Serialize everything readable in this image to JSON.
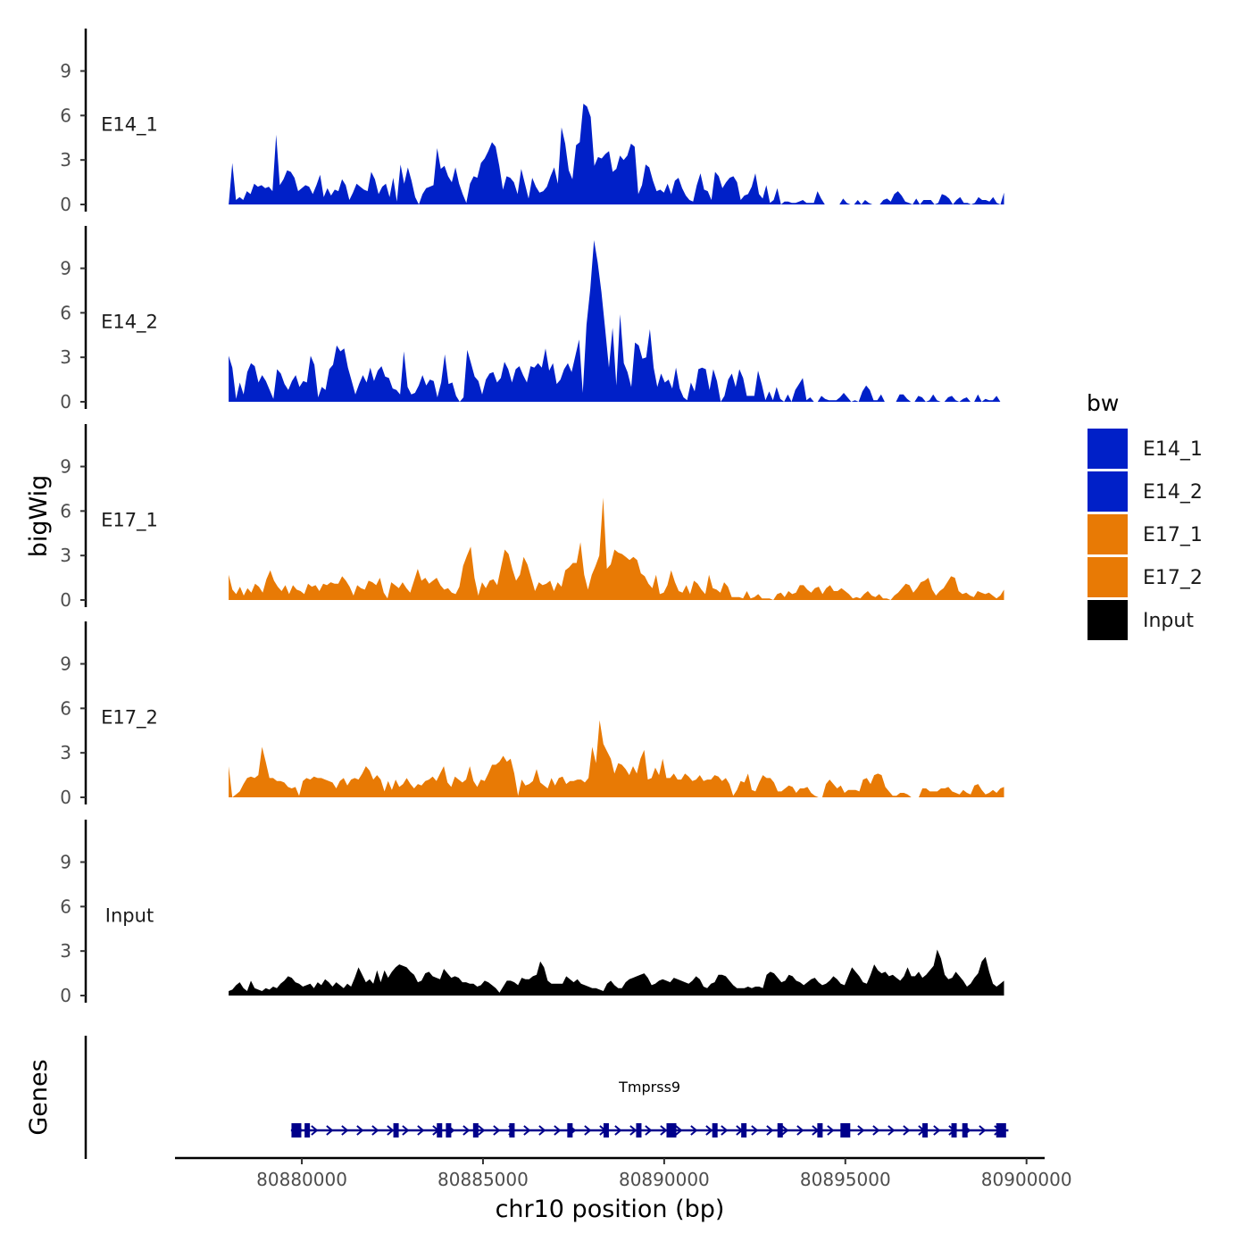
{
  "chart_data": {
    "type": "area",
    "title": "",
    "xlabel": "chr10 position (bp)",
    "ylabel": "bigWig",
    "xlim": [
      80876500,
      80900500
    ],
    "ylim": [
      0,
      11.5
    ],
    "yticks": [
      0,
      3,
      6,
      9
    ],
    "xticks": [
      80880000,
      80885000,
      80890000,
      80895000,
      80900000
    ],
    "data_range": [
      80877980,
      80899380
    ],
    "legend": {
      "title": "bw",
      "position": "right",
      "entries": [
        {
          "label": "E14_1",
          "color": "#0020c8"
        },
        {
          "label": "E14_2",
          "color": "#0020c8"
        },
        {
          "label": "E17_1",
          "color": "#e87a05"
        },
        {
          "label": "E17_2",
          "color": "#e87a05"
        },
        {
          "label": "Input",
          "color": "#000000"
        }
      ]
    },
    "series": [
      {
        "name": "E14_1",
        "color": "#0020c8",
        "values": [
          0,
          2.8,
          0.3,
          0.5,
          0.3,
          0.9,
          0.7,
          1.4,
          1.2,
          1.3,
          1.1,
          1.2,
          0.9,
          4.7,
          1.3,
          1.7,
          2.3,
          2.2,
          1.8,
          0.9,
          1.1,
          1.3,
          1.2,
          0.7,
          1.3,
          2,
          0.5,
          1.1,
          0.6,
          1,
          0.9,
          1.7,
          1.3,
          0.3,
          0.8,
          1.4,
          1.2,
          1,
          0.9,
          2.2,
          1.7,
          0.7,
          1.2,
          1.4,
          0.5,
          1.8,
          0.2,
          2.7,
          1.4,
          2.5,
          1.6,
          0.5,
          0,
          0.7,
          1.1,
          1.2,
          1.3,
          3.8,
          2.4,
          2.6,
          1.9,
          1.5,
          2.5,
          1.4,
          0.7,
          0.1,
          1.4,
          1.9,
          1.8,
          2.8,
          3.1,
          3.6,
          4.2,
          3.9,
          2.6,
          1,
          1.9,
          1.8,
          1.5,
          0.7,
          2.4,
          1.4,
          0.4,
          1.8,
          1.2,
          0.8,
          0.9,
          1.2,
          1.9,
          2.5,
          1.4,
          5.2,
          4.1,
          2.3,
          1.7,
          4,
          4.2,
          6.8,
          6.6,
          5.9,
          2.6,
          3.2,
          3.1,
          3.4,
          3.6,
          2.2,
          2.4,
          3.3,
          3,
          3.3,
          4.1,
          3.9,
          0.7,
          1.3,
          2.7,
          2.5,
          1.6,
          0.9,
          1,
          0.8,
          1.4,
          0.7,
          1.6,
          1.8,
          1.1,
          0.6,
          0.3,
          0.2,
          1.3,
          2.1,
          1,
          0.9,
          0.3,
          2.2,
          1.9,
          1.1,
          1.5,
          1.8,
          1.9,
          1.5,
          0.3,
          0.6,
          0.7,
          1.2,
          2.1,
          0.7,
          0.4,
          1.3,
          0.1,
          0.3,
          1.1,
          0,
          0.2,
          0.2,
          0.1,
          0.1,
          0.2,
          0.3,
          0.1,
          0.1,
          0.1,
          0.9,
          0.4,
          0,
          0,
          0,
          0,
          0,
          0.4,
          0.1,
          0,
          0,
          0.3,
          0,
          0.3,
          0.1,
          0,
          0,
          0,
          0.3,
          0.4,
          0.2,
          0.7,
          0.9,
          0.6,
          0.2,
          0.1,
          0,
          0.4,
          0,
          0.3,
          0.3,
          0.3,
          0,
          0.1,
          0.7,
          0.6,
          0.4,
          0,
          0.3,
          0.5,
          0.1,
          0.1,
          0,
          0.1,
          0.5,
          0.3,
          0.3,
          0.2,
          0.5,
          0.1,
          0,
          0.8
        ]
      },
      {
        "name": "E14_2",
        "color": "#0020c8",
        "values": [
          3.1,
          2.3,
          0.2,
          1.3,
          0.5,
          2,
          2.6,
          2.4,
          1.3,
          1.8,
          1.4,
          0.8,
          0.2,
          2.2,
          1.9,
          1.2,
          0.8,
          1.4,
          1.8,
          1,
          1.4,
          1.3,
          3.1,
          2.5,
          0.3,
          1,
          0.8,
          2.2,
          2.5,
          3.8,
          3.4,
          3.6,
          2.3,
          1.4,
          0.5,
          1.2,
          1.8,
          1.3,
          2.3,
          1.4,
          2.1,
          2.4,
          1.7,
          1.6,
          0.9,
          0.8,
          0.5,
          3.4,
          1,
          0.5,
          0.6,
          1.1,
          1.8,
          1.1,
          1.5,
          1.4,
          0.3,
          1.3,
          3.2,
          1.2,
          1.3,
          0.4,
          0,
          0.3,
          3.5,
          2.6,
          1.7,
          1.4,
          0.5,
          1.5,
          1.9,
          2,
          1.3,
          1.6,
          2.7,
          2.2,
          1.3,
          2.2,
          2.4,
          1.8,
          1.3,
          2.4,
          2.3,
          2.6,
          2.3,
          3.6,
          2.1,
          2.6,
          1.2,
          1.5,
          2.2,
          2.6,
          2,
          3.1,
          4.2,
          0.6,
          5.2,
          7.6,
          10.9,
          9.4,
          7.4,
          4.9,
          2.3,
          5,
          1.1,
          5.9,
          2.6,
          2,
          1,
          4,
          3.8,
          2.9,
          3,
          4.9,
          2.3,
          1,
          1.9,
          1.3,
          1.5,
          0.9,
          2.3,
          0.9,
          0.3,
          0.1,
          1.3,
          0.7,
          2.2,
          2.3,
          2.2,
          0.8,
          2.2,
          1.4,
          0,
          0.4,
          1.5,
          1.9,
          1,
          2.2,
          1.6,
          0.4,
          0.4,
          0.4,
          2.1,
          1.2,
          0.1,
          0.7,
          0.1,
          1,
          0.2,
          0,
          0.5,
          0,
          0.8,
          1.2,
          1.6,
          0.1,
          0.3,
          0,
          0,
          0.4,
          0.2,
          0.1,
          0.1,
          0.1,
          0.3,
          0.6,
          0.3,
          0,
          0.1,
          0,
          0.7,
          1.1,
          0.8,
          0.1,
          0.1,
          0.5,
          0,
          0,
          0,
          0,
          0.5,
          0.5,
          0.2,
          0,
          0,
          0.4,
          0.3,
          0,
          0.1,
          0.5,
          0.1,
          0,
          0,
          0.3,
          0.4,
          0.1,
          0,
          0.2,
          0.3,
          0,
          0,
          0.5,
          0,
          0.2,
          0.1,
          0.1,
          0.4,
          0,
          0
        ]
      },
      {
        "name": "E17_1",
        "color": "#e87a05",
        "values": [
          1.7,
          0.7,
          0.4,
          0.9,
          0.3,
          0.8,
          0.5,
          1.1,
          0.9,
          0.5,
          1.4,
          2,
          1.3,
          0.9,
          0.6,
          1,
          0.4,
          1,
          0.7,
          0.6,
          0.4,
          1.1,
          0.9,
          1,
          0.6,
          1.1,
          1,
          1.2,
          1.1,
          1.1,
          1.6,
          1.3,
          0.9,
          0.3,
          1,
          0.8,
          0.7,
          1.3,
          1.2,
          1,
          1.5,
          0.5,
          0.1,
          1.2,
          1,
          0.8,
          1.2,
          0.8,
          0.5,
          1.3,
          2.1,
          1.3,
          1.5,
          1.1,
          1.3,
          1.5,
          1,
          0.7,
          0.8,
          0.5,
          0.4,
          0.9,
          2.3,
          3,
          3.6,
          1.5,
          0.3,
          1.2,
          0.8,
          1.3,
          1.4,
          1,
          2.2,
          3.4,
          3.1,
          2.1,
          1.3,
          1.7,
          2.9,
          2.4,
          1.5,
          0.6,
          1.2,
          1,
          1.1,
          1.3,
          0.6,
          1.2,
          0.9,
          2,
          2.2,
          2.5,
          2.5,
          3.9,
          1.7,
          0.7,
          1.7,
          2.3,
          3,
          6.9,
          2.1,
          2.4,
          3.4,
          3.2,
          3.1,
          2.9,
          2.7,
          2.9,
          2.7,
          1.8,
          1.6,
          1.1,
          0.8,
          1.7,
          0.4,
          0.5,
          1,
          2,
          1.2,
          0.6,
          0.5,
          1,
          0.4,
          1.3,
          1.1,
          0.7,
          0.4,
          1.7,
          0.8,
          0.7,
          0.5,
          1.2,
          0.9,
          0.2,
          0.2,
          0.2,
          0.1,
          0.6,
          0.1,
          0.2,
          0.4,
          0.1,
          0.1,
          0.1,
          0,
          0.4,
          0.5,
          0.2,
          0.6,
          0.4,
          0.5,
          1,
          1,
          0.7,
          0.5,
          0.8,
          0.9,
          0.4,
          0.8,
          1,
          0.6,
          0.6,
          0.8,
          0.6,
          0.4,
          0.1,
          0.2,
          0.1,
          0.4,
          0.6,
          0.3,
          0.2,
          0.4,
          0.1,
          0.1,
          0,
          0.3,
          0.5,
          0.8,
          1.1,
          1,
          0.5,
          0.8,
          1.2,
          1.3,
          1.5,
          0.7,
          0.3,
          0.6,
          0.8,
          1.2,
          1.6,
          1.5,
          0.6,
          0.4,
          0.5,
          0.3,
          0.2,
          0.6,
          0.5,
          0.4,
          0.5,
          0.3,
          0.1,
          0.3,
          0.7
        ]
      },
      {
        "name": "E17_2",
        "color": "#e87a05",
        "values": [
          2.1,
          0,
          0.2,
          0.4,
          0.9,
          1.3,
          1.4,
          1.3,
          1.5,
          3.4,
          2.4,
          1.3,
          1.3,
          1.1,
          1.1,
          1,
          0.7,
          0.6,
          0.7,
          0.1,
          1.1,
          1.3,
          1.2,
          1.4,
          1.3,
          1.3,
          1.2,
          1.1,
          1,
          0.6,
          1.1,
          1.3,
          0.8,
          1.2,
          1.3,
          1.2,
          1.6,
          2.1,
          1.8,
          1.2,
          1.5,
          1.2,
          0.4,
          1.1,
          0.5,
          1.2,
          0.7,
          0.9,
          1.3,
          0.9,
          0.6,
          0.9,
          0.8,
          1.1,
          1.2,
          1.4,
          1.1,
          1.6,
          2.1,
          1,
          0.7,
          1.4,
          1.2,
          1,
          1.2,
          2.1,
          1.1,
          0.7,
          1.2,
          1.1,
          1.6,
          2.2,
          2.2,
          2.4,
          2.8,
          2.4,
          2.6,
          1.6,
          0.1,
          1.2,
          0.8,
          0.9,
          1.1,
          1.9,
          1,
          0.8,
          0.6,
          1.3,
          0.8,
          1.3,
          1.4,
          0.9,
          1.1,
          1.1,
          1.2,
          1.2,
          1,
          1.3,
          3.4,
          2.3,
          5.2,
          3.6,
          3.1,
          2.6,
          1.6,
          2.3,
          2.2,
          1.9,
          1.5,
          2.1,
          1.6,
          2.6,
          3.2,
          1.2,
          1.3,
          2,
          1.5,
          2.6,
          1.3,
          1.3,
          1.6,
          1.2,
          1.2,
          1.6,
          1.4,
          1.1,
          1.2,
          1.5,
          1.1,
          1.2,
          1.2,
          1.5,
          1.4,
          1.1,
          1.3,
          0.9,
          0.1,
          0.5,
          1.1,
          1,
          1.6,
          0.5,
          0.4,
          1,
          1.5,
          1.3,
          1.3,
          1,
          0.4,
          0.4,
          0.6,
          0.8,
          0.7,
          0.3,
          0.6,
          0.6,
          0.7,
          0.3,
          0.1,
          0,
          0,
          0.9,
          1.2,
          0.9,
          0.6,
          0.8,
          0.3,
          0.5,
          0.5,
          0.5,
          0.4,
          1.2,
          1.3,
          0.9,
          1.5,
          1.6,
          1.5,
          0.7,
          0.4,
          0.1,
          0.1,
          0.3,
          0.3,
          0.2,
          0,
          0,
          0,
          0.6,
          0.6,
          0.4,
          0.4,
          0.4,
          0.6,
          0.6,
          0.7,
          0.4,
          0.3,
          0.2,
          0.5,
          0.3,
          0.2,
          0.8,
          0.9,
          0.5,
          0.2,
          0.3,
          0.5,
          0.3,
          0.6,
          0.7
        ]
      },
      {
        "name": "Input",
        "color": "#000000",
        "values": [
          0.3,
          0.4,
          0.7,
          0.9,
          0.5,
          0.3,
          1,
          0.5,
          0.4,
          0.3,
          0.5,
          0.4,
          0.6,
          0.5,
          0.8,
          1,
          1.3,
          1.2,
          0.9,
          0.8,
          0.6,
          0.7,
          0.8,
          0.5,
          0.9,
          0.7,
          1.1,
          0.9,
          0.6,
          0.9,
          0.7,
          0.5,
          0.8,
          0.6,
          1.2,
          1.9,
          1.4,
          0.9,
          1.1,
          0.8,
          1.7,
          0.9,
          1.7,
          1.2,
          1.6,
          1.9,
          2.1,
          2,
          1.9,
          1.6,
          1.4,
          0.9,
          1,
          1.5,
          1.6,
          1.3,
          1.2,
          1.1,
          1.8,
          1.5,
          1.2,
          1.3,
          1.2,
          0.9,
          0.9,
          0.8,
          0.8,
          0.6,
          0.7,
          1,
          0.9,
          0.7,
          0.5,
          0.2,
          0.6,
          1,
          1,
          0.9,
          0.7,
          1.2,
          1.1,
          1.1,
          1.3,
          1.4,
          2.3,
          1.9,
          1,
          0.8,
          0.8,
          0.8,
          0.8,
          1.3,
          1.1,
          0.9,
          1.1,
          0.8,
          0.7,
          0.6,
          0.5,
          0.5,
          0.4,
          0.3,
          0.8,
          1,
          0.7,
          0.5,
          0.5,
          0.9,
          1.1,
          1.2,
          1.3,
          1.4,
          1.5,
          1.2,
          0.7,
          0.8,
          1,
          1.1,
          1,
          0.9,
          1.2,
          1.1,
          1,
          0.9,
          0.8,
          1,
          1.3,
          1.1,
          0.6,
          0.5,
          0.8,
          0.9,
          1.4,
          1.4,
          1.3,
          1,
          0.7,
          0.5,
          0.5,
          0.5,
          0.6,
          0.5,
          0.6,
          0.6,
          0.5,
          1.4,
          1.6,
          1.5,
          1.2,
          0.9,
          1,
          1.4,
          1.3,
          1,
          0.9,
          0.7,
          0.9,
          1.1,
          1.2,
          0.9,
          0.7,
          0.8,
          1,
          1.3,
          1.1,
          0.8,
          0.7,
          1.3,
          1.9,
          1.6,
          1.3,
          0.9,
          0.8,
          1.4,
          2.1,
          1.7,
          1.5,
          1.6,
          1.3,
          1.4,
          1.2,
          1,
          1.3,
          1.9,
          1.3,
          1.3,
          1.6,
          1.2,
          1.4,
          1.7,
          2,
          3.1,
          2.5,
          1.4,
          1.1,
          1.2,
          1.6,
          1.3,
          1,
          0.6,
          0.8,
          1.2,
          1.5,
          2.3,
          2.6,
          1.6,
          0.8,
          0.6,
          0.8,
          1
        ]
      }
    ],
    "genes": [
      {
        "name": "Tmprss9",
        "start": 80879700,
        "end": 80899500,
        "strand": "+",
        "exons": [
          80879850,
          80880150,
          80882600,
          80883800,
          80884050,
          80884800,
          80885800,
          80887400,
          80888400,
          80889300,
          80890200,
          80891400,
          80892200,
          80893200,
          80894300,
          80895000,
          80897200,
          80898000,
          80898300,
          80899300
        ]
      }
    ]
  },
  "gene_panel": {
    "label": "Genes"
  }
}
